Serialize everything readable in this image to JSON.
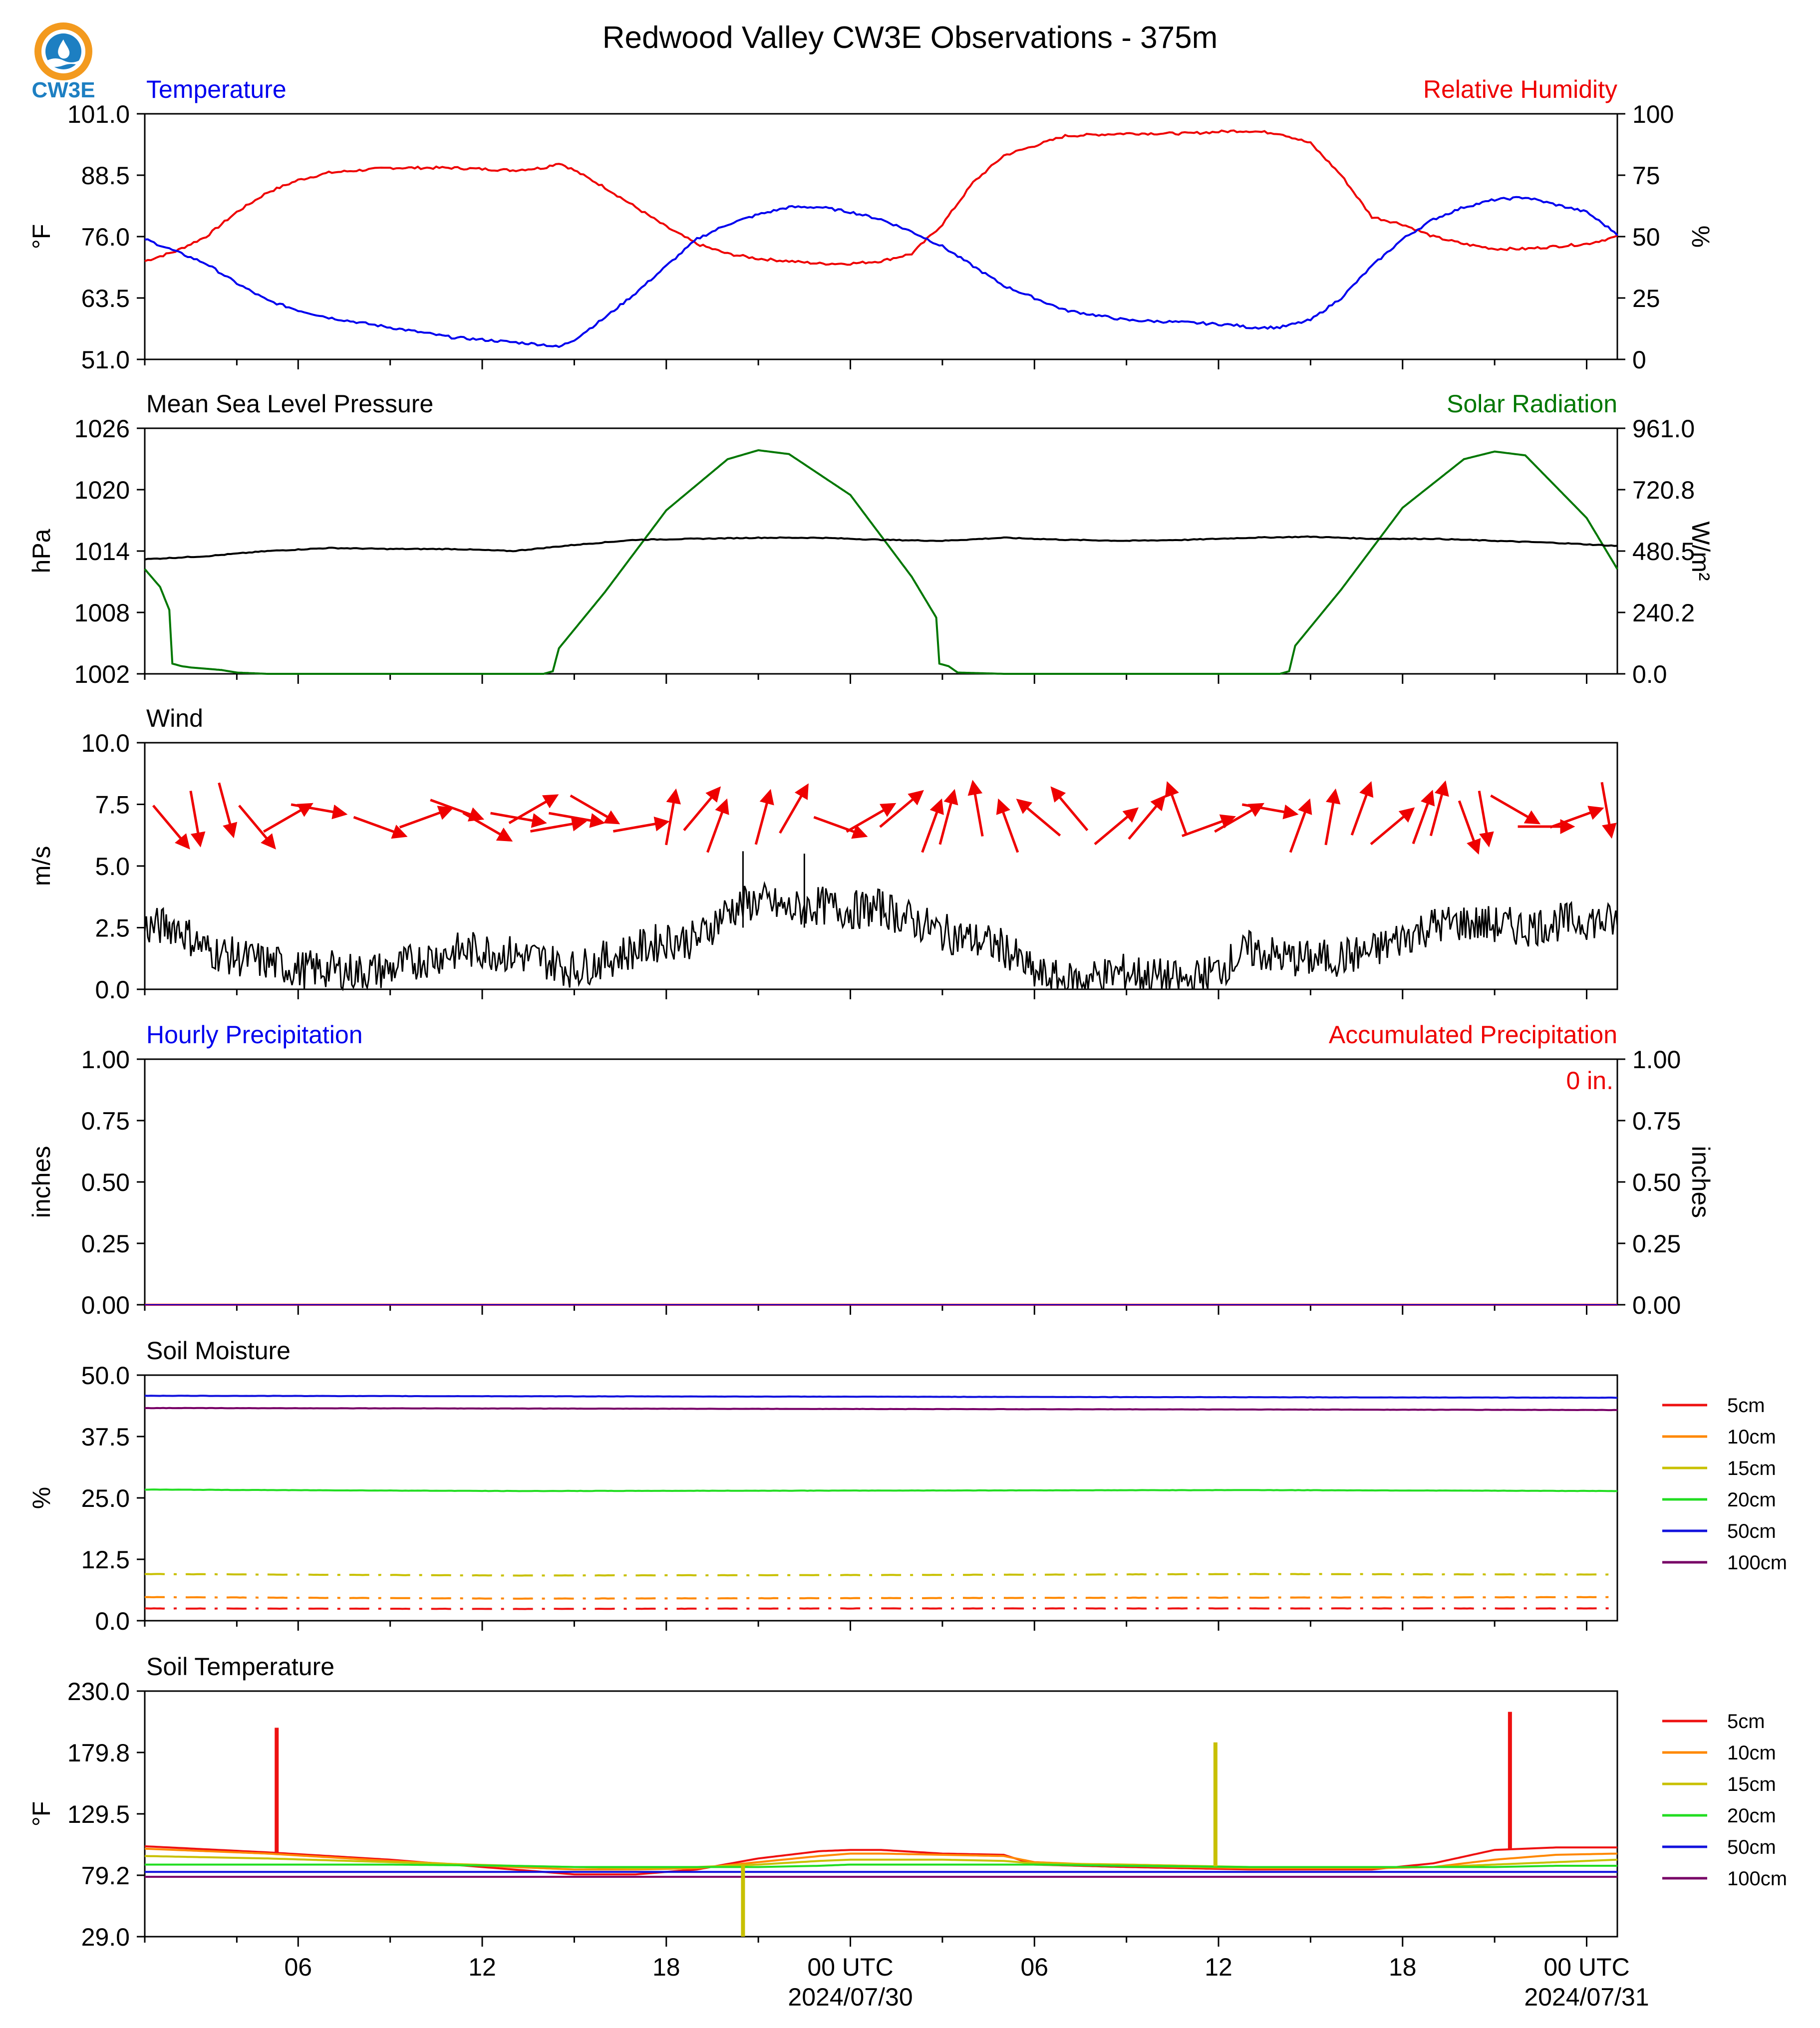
{
  "header": {
    "title": "Redwood Valley CW3E Observations - 375m",
    "logo_text": "CW3E"
  },
  "colors": {
    "blue": "#0000ee",
    "red": "#ee0000",
    "green": "#007700",
    "black": "#000000",
    "soil_5cm": "#ee1111",
    "soil_10cm": "#ff8800",
    "soil_15cm": "#c8c000",
    "soil_20cm": "#22dd22",
    "soil_50cm": "#1111dd",
    "soil_100cm": "#770066"
  },
  "chart_data": [
    {
      "type": "line",
      "left_title": "Temperature",
      "right_title": "Relative Humidity",
      "ylabel": "°F",
      "ylabel_right": "%",
      "ylim": [
        51.0,
        101.0
      ],
      "yticks": [
        "51.0",
        "63.5",
        "76.0",
        "88.5",
        "101.0"
      ],
      "ylim_right": [
        0,
        100
      ],
      "yticks_right": [
        "0",
        "25",
        "50",
        "75",
        "100"
      ],
      "x_hours": [
        0,
        1,
        2,
        3,
        4,
        5,
        6,
        8,
        10,
        12,
        13,
        13.5,
        14,
        15,
        16,
        17,
        18,
        19,
        20,
        21,
        22,
        23,
        24,
        25,
        26,
        27,
        28,
        30,
        32,
        34,
        35.5,
        36,
        37,
        38,
        39,
        40,
        41,
        42,
        43,
        44,
        45,
        46,
        47,
        48
      ],
      "series": [
        {
          "name": "Temperature",
          "axis": "left",
          "values": [
            75.5,
            73.0,
            70.5,
            66.5,
            63.0,
            61.0,
            59.5,
            57.5,
            55.5,
            54.5,
            54.0,
            53.5,
            55.0,
            59.5,
            64.5,
            70.0,
            75.5,
            78.5,
            80.5,
            82.0,
            82.0,
            81.0,
            79.5,
            77.0,
            74.0,
            70.0,
            66.0,
            61.0,
            59.0,
            58.5,
            58.0,
            57.5,
            57.5,
            59.0,
            63.5,
            70.0,
            75.5,
            79.5,
            82.0,
            83.5,
            84.0,
            82.5,
            81.0,
            76.5
          ]
        },
        {
          "name": "Relative Humidity",
          "axis": "right",
          "values": [
            40,
            44,
            50,
            60,
            68,
            73,
            76,
            78,
            78,
            77,
            78,
            80,
            77,
            70,
            62,
            54,
            47,
            43,
            41,
            40,
            39,
            39,
            40,
            43,
            55,
            72,
            83,
            91,
            92,
            92,
            93,
            93,
            92,
            88,
            75,
            58,
            55,
            50,
            47,
            45,
            45,
            46,
            47,
            50
          ]
        }
      ]
    },
    {
      "type": "line",
      "left_title": "Mean Sea Level Pressure",
      "right_title": "Solar Radiation",
      "ylabel": "hPa",
      "ylabel_right": "W/m²",
      "ylim": [
        1002,
        1026
      ],
      "yticks": [
        "1002",
        "1008",
        "1014",
        "1020",
        "1026"
      ],
      "ylim_right": [
        0.0,
        961.0
      ],
      "yticks_right": [
        "0.0",
        "240.2",
        "480.5",
        "720.8",
        "961.0"
      ],
      "pressure_x_hours": [
        0,
        2,
        4,
        6,
        8,
        10,
        12,
        14,
        16,
        18,
        20,
        22,
        24,
        26,
        28,
        30,
        32,
        34,
        36,
        38,
        40,
        42,
        44,
        46,
        48
      ],
      "pressure_values": [
        1013.2,
        1013.5,
        1014.0,
        1014.3,
        1014.2,
        1014.2,
        1014.0,
        1014.6,
        1015.1,
        1015.2,
        1015.3,
        1015.3,
        1015.1,
        1015.0,
        1015.3,
        1015.1,
        1015.0,
        1015.1,
        1015.3,
        1015.4,
        1015.2,
        1015.2,
        1015.0,
        1014.8,
        1014.5
      ],
      "solar_x_hours": [
        0,
        0.5,
        0.8,
        0.9,
        1.2,
        1.5,
        2.5,
        3.0,
        4.0,
        13.0,
        13.3,
        13.5,
        15.0,
        17.0,
        19.0,
        20.0,
        21.0,
        23.0,
        25.0,
        25.8,
        25.9,
        26.2,
        26.5,
        28.0,
        37.0,
        37.3,
        37.5,
        39.0,
        41.0,
        43.0,
        44.0,
        45.0,
        47.0,
        48.0
      ],
      "solar_values": [
        410,
        340,
        250,
        40,
        30,
        25,
        15,
        5,
        0,
        0,
        10,
        100,
        320,
        640,
        840,
        875,
        860,
        700,
        380,
        220,
        40,
        30,
        5,
        0,
        0,
        10,
        110,
        330,
        650,
        840,
        870,
        855,
        610,
        410
      ]
    },
    {
      "type": "line",
      "left_title": "Wind",
      "ylabel": "m/s",
      "ylim": [
        0.0,
        10.0
      ],
      "yticks": [
        "0.0",
        "2.5",
        "5.0",
        "7.5",
        "10.0"
      ],
      "speed_x_hours": [
        0,
        1,
        2,
        3,
        4,
        5,
        6,
        7,
        8,
        9,
        10,
        11,
        12,
        13,
        14,
        15,
        16,
        17,
        18,
        19,
        20,
        21,
        22,
        23,
        24,
        25,
        26,
        27,
        28,
        29,
        30,
        31,
        32,
        33,
        34,
        35,
        36,
        37,
        38,
        39,
        40,
        41,
        42,
        43,
        44,
        45,
        46,
        47,
        48
      ],
      "speed_values": [
        2.5,
        2.6,
        1.6,
        1.3,
        1.1,
        0.8,
        0.8,
        0.7,
        0.8,
        1.2,
        1.5,
        1.6,
        1.4,
        1.2,
        0.8,
        1.2,
        1.6,
        2.0,
        2.0,
        3.2,
        3.6,
        3.2,
        3.4,
        3.2,
        3.3,
        2.8,
        2.3,
        2.0,
        1.7,
        0.6,
        0.3,
        0.5,
        0.7,
        0.5,
        0.3,
        0.8,
        1.6,
        1.3,
        1.2,
        1.3,
        1.5,
        2.1,
        2.6,
        2.7,
        2.6,
        2.5,
        2.7,
        2.8,
        2.7
      ],
      "gust_x_hours": [
        19.5,
        21.5
      ],
      "gust_values": [
        5.6,
        5.5
      ],
      "arrows_from_deg": [
        [
          0.2,
          320
        ],
        [
          1.0,
          350
        ],
        [
          2.0,
          345
        ],
        [
          3.0,
          320
        ],
        [
          4.0,
          240
        ],
        [
          5.0,
          280
        ],
        [
          7.0,
          290
        ],
        [
          8.5,
          250
        ],
        [
          9.5,
          290
        ],
        [
          10.5,
          300
        ],
        [
          11.5,
          280
        ],
        [
          12.0,
          240
        ],
        [
          12.8,
          260
        ],
        [
          13.4,
          280
        ],
        [
          14.0,
          300
        ],
        [
          15.5,
          260
        ],
        [
          16.5,
          190
        ],
        [
          17.5,
          220
        ],
        [
          18.0,
          200
        ],
        [
          19.5,
          195
        ],
        [
          20.5,
          210
        ],
        [
          22.0,
          290
        ],
        [
          23.0,
          240
        ],
        [
          24.0,
          230
        ],
        [
          25.0,
          200
        ],
        [
          25.5,
          195
        ],
        [
          26.5,
          170
        ],
        [
          27.5,
          160
        ],
        [
          28.5,
          130
        ],
        [
          29.5,
          140
        ],
        [
          31.0,
          230
        ],
        [
          32.0,
          220
        ],
        [
          33.0,
          160
        ],
        [
          34.0,
          250
        ],
        [
          35.0,
          240
        ],
        [
          36.0,
          280
        ],
        [
          37.0,
          200
        ],
        [
          38.0,
          190
        ],
        [
          39.0,
          200
        ],
        [
          40.0,
          230
        ],
        [
          41.0,
          200
        ],
        [
          41.5,
          195
        ],
        [
          42.5,
          340
        ],
        [
          43.0,
          350
        ],
        [
          44.0,
          300
        ],
        [
          45.0,
          270
        ],
        [
          46.0,
          250
        ],
        [
          47.0,
          350
        ]
      ]
    },
    {
      "type": "line",
      "left_title": "Hourly Precipitation",
      "right_title": "Accumulated Precipitation",
      "ylabel": "inches",
      "ylabel_right": "inches",
      "ylim": [
        0.0,
        1.0
      ],
      "yticks": [
        "0.00",
        "0.25",
        "0.50",
        "0.75",
        "1.00"
      ],
      "yticks_right": [
        "0.00",
        "0.25",
        "0.50",
        "0.75",
        "1.00"
      ],
      "x_hours": [
        0,
        48
      ],
      "hourly_values": [
        0.0,
        0.0
      ],
      "accumulated_values": [
        0.0,
        0.0
      ],
      "annotation": "0 in."
    },
    {
      "type": "line",
      "left_title": "Soil Moisture",
      "ylabel": "%",
      "ylim": [
        0.0,
        50.0
      ],
      "yticks": [
        "0.0",
        "12.5",
        "25.0",
        "37.5",
        "50.0"
      ],
      "legend": [
        "5cm",
        "10cm",
        "15cm",
        "20cm",
        "50cm",
        "100cm"
      ],
      "x_hours": [
        0,
        12,
        24,
        36,
        48
      ],
      "series": [
        {
          "name": "5cm",
          "values": [
            2.5,
            2.4,
            2.5,
            2.5,
            2.5
          ],
          "dashed": true
        },
        {
          "name": "10cm",
          "values": [
            4.8,
            4.5,
            4.6,
            4.7,
            4.8
          ],
          "dashed": true
        },
        {
          "name": "15cm",
          "values": [
            9.5,
            9.2,
            9.3,
            9.5,
            9.4
          ],
          "dashed": true
        },
        {
          "name": "20cm",
          "values": [
            26.7,
            26.4,
            26.5,
            26.6,
            26.4
          ]
        },
        {
          "name": "50cm",
          "values": [
            45.8,
            45.7,
            45.6,
            45.5,
            45.4
          ]
        },
        {
          "name": "100cm",
          "values": [
            43.3,
            43.2,
            43.1,
            43.0,
            42.9
          ]
        }
      ]
    },
    {
      "type": "line",
      "left_title": "Soil Temperature",
      "ylabel": "°F",
      "ylim": [
        29.0,
        230.0
      ],
      "yticks": [
        "29.0",
        "79.2",
        "129.5",
        "179.8",
        "230.0"
      ],
      "xlim_hours": [
        0,
        48
      ],
      "xticks": [
        "06",
        "12",
        "18",
        "00 UTC",
        "06",
        "12",
        "18",
        "00 UTC"
      ],
      "xtick_hours": [
        5,
        11,
        17,
        23,
        29,
        35,
        41,
        47
      ],
      "date_labels": [
        "2024/07/30",
        "2024/07/31"
      ],
      "date_label_hours": [
        23,
        47
      ],
      "legend": [
        "5cm",
        "10cm",
        "15cm",
        "20cm",
        "50cm",
        "100cm"
      ],
      "x_hours": [
        0,
        4,
        8,
        12,
        14,
        16,
        18,
        20,
        22,
        23,
        24,
        26,
        28,
        29,
        32,
        36,
        40,
        42,
        44,
        46,
        48
      ],
      "series": [
        {
          "name": "5cm",
          "values": [
            103,
            98,
            92,
            84,
            80,
            80,
            84,
            93,
            99,
            100,
            100,
            97,
            96,
            88,
            86,
            84,
            84,
            89,
            100,
            102,
            102
          ]
        },
        {
          "name": "10cm",
          "values": [
            101,
            97,
            91,
            86,
            84,
            84,
            85,
            90,
            95,
            97,
            97,
            96,
            95,
            90,
            87,
            85,
            85,
            86,
            92,
            96,
            97
          ]
        },
        {
          "name": "15cm",
          "values": [
            95,
            93,
            90,
            87,
            86,
            85,
            86,
            88,
            91,
            92,
            92,
            92,
            91,
            89,
            88,
            86,
            86,
            86,
            88,
            90,
            92
          ]
        },
        {
          "name": "20cm",
          "values": [
            88,
            88,
            88,
            87,
            86,
            86,
            86,
            86,
            87,
            88,
            88,
            88,
            88,
            88,
            87,
            86,
            86,
            86,
            86,
            87,
            87
          ]
        },
        {
          "name": "50cm",
          "values": [
            82,
            82,
            82,
            82,
            82,
            82,
            82,
            82,
            82,
            82,
            82,
            82,
            82,
            82,
            82,
            82,
            82,
            82,
            82,
            82,
            82
          ]
        },
        {
          "name": "100cm",
          "values": [
            78,
            78,
            78,
            78,
            78,
            78,
            78,
            78,
            78,
            78,
            78,
            78,
            78,
            78,
            78,
            78,
            78,
            78,
            78,
            78,
            78
          ]
        }
      ],
      "spikes": [
        {
          "series": "5cm",
          "hour": 4.3,
          "value": 200
        },
        {
          "series": "15cm",
          "hour": 19.5,
          "value": 29
        },
        {
          "series": "15cm",
          "hour": 34.9,
          "value": 188
        },
        {
          "series": "5cm",
          "hour": 44.5,
          "value": 213
        }
      ]
    }
  ]
}
